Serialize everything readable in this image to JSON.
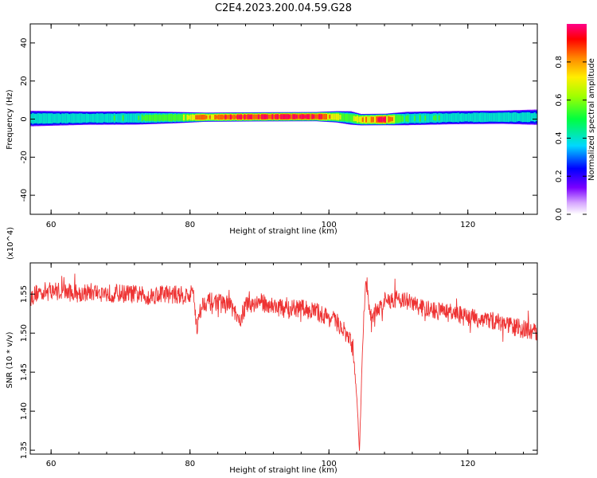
{
  "title": "C2E4.2023.200.04.59.G28",
  "chart_data": [
    {
      "type": "heatmap",
      "xlabel": "Height of straight line (km)",
      "ylabel": "Frequency (Hz)",
      "xlim": [
        57,
        130
      ],
      "ylim": [
        -50,
        50
      ],
      "xticks": [
        60,
        80,
        100,
        120
      ],
      "yticks": [
        -40,
        -20,
        0,
        20,
        40
      ],
      "colorbar": {
        "label": "Normalized spectral amplitude",
        "range": [
          0,
          1
        ],
        "ticks": [
          "0.0",
          "0.2",
          "0.4",
          "0.6",
          "0.8"
        ]
      },
      "band": [
        {
          "x": 57,
          "center": 0.3,
          "halfwidth": 3.5,
          "peak": 0.45
        },
        {
          "x": 65,
          "center": 0.5,
          "halfwidth": 3.0,
          "peak": 0.45
        },
        {
          "x": 72,
          "center": 0.6,
          "halfwidth": 3.0,
          "peak": 0.48
        },
        {
          "x": 78,
          "center": 0.8,
          "halfwidth": 2.5,
          "peak": 0.6
        },
        {
          "x": 82,
          "center": 1.0,
          "halfwidth": 2.0,
          "peak": 0.85
        },
        {
          "x": 90,
          "center": 1.2,
          "halfwidth": 2.0,
          "peak": 0.95
        },
        {
          "x": 98,
          "center": 1.3,
          "halfwidth": 2.0,
          "peak": 0.95
        },
        {
          "x": 101,
          "center": 1.2,
          "halfwidth": 2.5,
          "peak": 0.7
        },
        {
          "x": 103,
          "center": 0.6,
          "halfwidth": 3.0,
          "peak": 0.55
        },
        {
          "x": 104.5,
          "center": -0.3,
          "halfwidth": 2.5,
          "peak": 0.8
        },
        {
          "x": 108,
          "center": -0.2,
          "halfwidth": 2.5,
          "peak": 0.9
        },
        {
          "x": 111,
          "center": 0.3,
          "halfwidth": 3.0,
          "peak": 0.5
        },
        {
          "x": 118,
          "center": 0.8,
          "halfwidth": 3.0,
          "peak": 0.45
        },
        {
          "x": 125,
          "center": 1.0,
          "halfwidth": 3.0,
          "peak": 0.45
        },
        {
          "x": 130,
          "center": 1.0,
          "halfwidth": 3.5,
          "peak": 0.4
        }
      ]
    },
    {
      "type": "line",
      "xlabel": "Height of straight line (km)",
      "ylabel": "SNR (10 * v/v)",
      "exponent_label": "(x10^4)",
      "xlim": [
        57,
        130
      ],
      "ylim": [
        1.345,
        1.59
      ],
      "xticks": [
        60,
        80,
        100,
        120
      ],
      "yticks": [
        1.35,
        1.4,
        1.45,
        1.5,
        1.55
      ],
      "series": [
        {
          "color": "#ee3333",
          "x": [
            57,
            58,
            60,
            62,
            64,
            66,
            68,
            70,
            72,
            74,
            76,
            78,
            80,
            80.5,
            81,
            81.5,
            82,
            84,
            86,
            87,
            88,
            90,
            92,
            94,
            96,
            98,
            100,
            101,
            102,
            103,
            103.5,
            104,
            104.4,
            104.8,
            105.3,
            106,
            107,
            108,
            110,
            112,
            114,
            116,
            118,
            120,
            122,
            124,
            126,
            128,
            130
          ],
          "y": [
            1.545,
            1.552,
            1.555,
            1.553,
            1.551,
            1.553,
            1.551,
            1.551,
            1.55,
            1.547,
            1.551,
            1.549,
            1.548,
            1.555,
            1.505,
            1.53,
            1.54,
            1.54,
            1.535,
            1.512,
            1.535,
            1.54,
            1.535,
            1.53,
            1.532,
            1.528,
            1.52,
            1.515,
            1.505,
            1.49,
            1.48,
            1.42,
            1.35,
            1.47,
            1.575,
            1.52,
            1.53,
            1.54,
            1.545,
            1.538,
            1.53,
            1.528,
            1.525,
            1.52,
            1.518,
            1.515,
            1.51,
            1.505,
            1.5
          ],
          "noise": 0.012
        }
      ]
    }
  ]
}
